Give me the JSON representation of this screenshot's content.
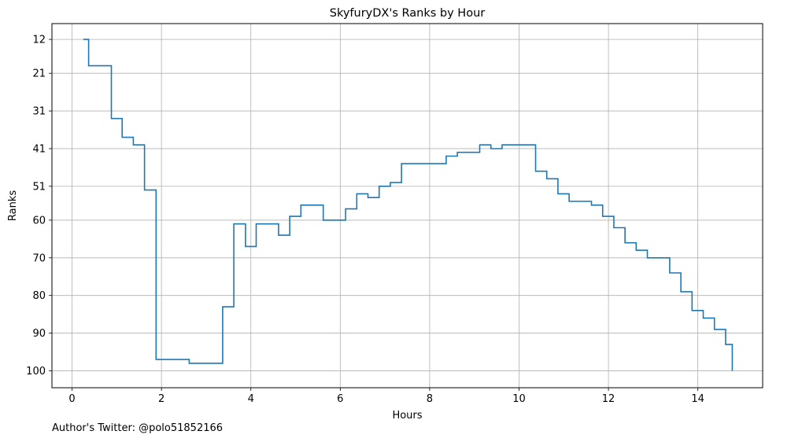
{
  "chart_data": {
    "type": "line",
    "step": "post",
    "title": "SkyfuryDX's Ranks by Hour",
    "xlabel": "Hours",
    "ylabel": "Ranks",
    "xlim": [
      -0.45,
      15.45
    ],
    "ylim": [
      104.5,
      7.8
    ],
    "y_inverted": true,
    "grid": true,
    "line_color": "#1f77b4",
    "x_ticks": [
      0,
      2,
      4,
      6,
      8,
      10,
      12,
      14
    ],
    "y_ticks": [
      12,
      21,
      31,
      41,
      51,
      60,
      70,
      80,
      90,
      100
    ],
    "series": [
      {
        "x": [
          0.25,
          0.37,
          0.62,
          0.88,
          1.12,
          1.37,
          1.62,
          1.88,
          2.12,
          2.37,
          2.62,
          2.88,
          3.12,
          3.37,
          3.62,
          3.88,
          4.12,
          4.37,
          4.62,
          4.87,
          5.12,
          5.37,
          5.62,
          5.87,
          6.12,
          6.37,
          6.62,
          6.87,
          7.12,
          7.37,
          7.62,
          7.87,
          8.12,
          8.37,
          8.62,
          8.87,
          9.12,
          9.37,
          9.62,
          9.87,
          10.12,
          10.37,
          10.62,
          10.87,
          11.12,
          11.37,
          11.62,
          11.87,
          12.12,
          12.37,
          12.62,
          12.87,
          13.12,
          13.37,
          13.62,
          13.87,
          14.12,
          14.37,
          14.62,
          14.77
        ],
        "y": [
          12,
          19,
          19,
          33,
          38,
          40,
          52,
          97,
          97,
          97,
          98,
          98,
          98,
          83,
          61,
          67,
          61,
          61,
          64,
          59,
          56,
          56,
          60,
          60,
          57,
          53,
          54,
          51,
          50,
          45,
          45,
          45,
          45,
          43,
          42,
          42,
          40,
          41,
          40,
          40,
          40,
          47,
          49,
          53,
          55,
          55,
          56,
          59,
          62,
          66,
          68,
          70,
          70,
          74,
          79,
          84,
          86,
          89,
          93,
          100
        ]
      }
    ]
  },
  "footer": {
    "author_text": "Author's Twitter: @polo51852166"
  }
}
